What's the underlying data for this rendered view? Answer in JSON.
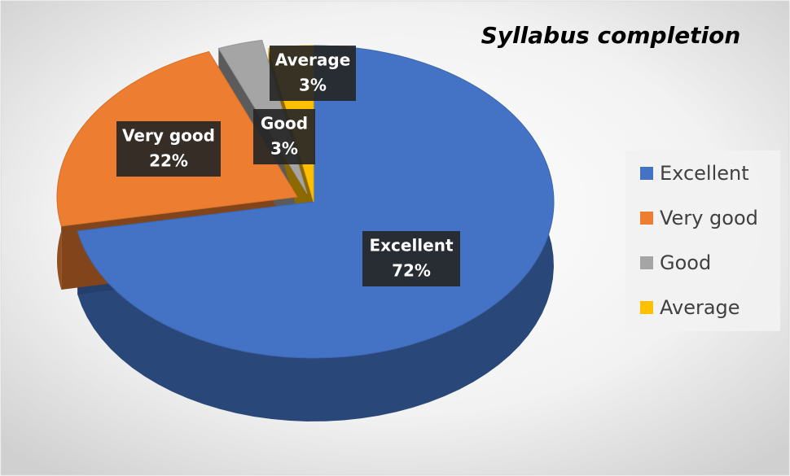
{
  "chart_data": {
    "type": "pie",
    "title": "Syllabus completion",
    "categories": [
      "Excellent",
      "Very good",
      "Good",
      "Average"
    ],
    "values": [
      72,
      22,
      3,
      3
    ],
    "value_labels": [
      "72%",
      "22%",
      "3%",
      "3%"
    ],
    "colors": [
      "#4472c4",
      "#ed7d31",
      "#a5a5a5",
      "#ffc000"
    ],
    "legend": "right"
  }
}
